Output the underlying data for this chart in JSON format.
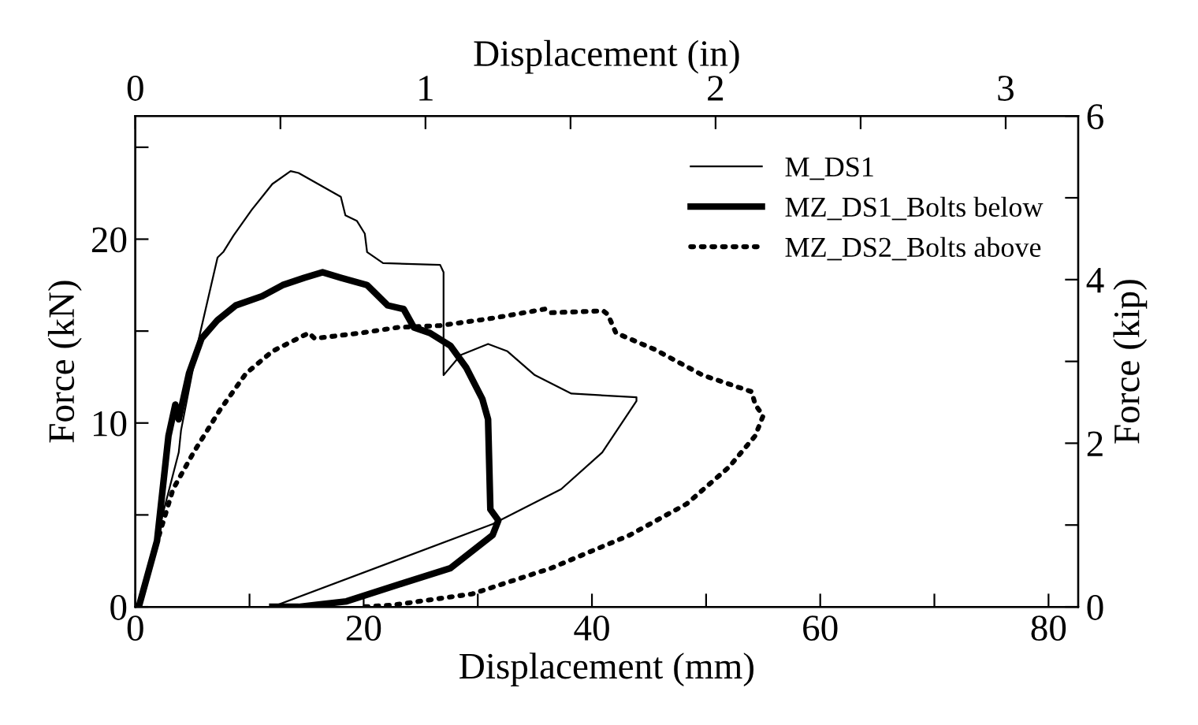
{
  "chart_data": {
    "type": "line",
    "xlabel": "Displacement (mm)",
    "ylabel": "Force (kN)",
    "x2label": "Displacement (in)",
    "y2label": "Force (kip)",
    "xlim": [
      0,
      82.6
    ],
    "ylim": [
      0,
      26.7
    ],
    "x2lim": [
      0,
      3.25
    ],
    "y2lim": [
      0,
      6
    ],
    "xticks": [
      0,
      {
        "value": 10,
        "label": null
      },
      20,
      {
        "value": 30,
        "label": null
      },
      40,
      {
        "value": 50,
        "label": null
      },
      60,
      {
        "value": 70,
        "label": null
      },
      80
    ],
    "yticks": [
      0,
      {
        "value": 5,
        "label": null
      },
      10,
      {
        "value": 15,
        "label": null
      },
      20,
      {
        "value": 25,
        "label": null
      }
    ],
    "x2ticks": [
      0,
      {
        "value": 0.5,
        "label": null
      },
      1,
      {
        "value": 1.5,
        "label": null
      },
      2,
      {
        "value": 2.5,
        "label": null
      },
      3
    ],
    "y2ticks": [
      0,
      {
        "value": 1,
        "label": null
      },
      2,
      {
        "value": 3,
        "label": null
      },
      4,
      {
        "value": 5,
        "label": null
      },
      6
    ],
    "grid": false,
    "legend": "top right",
    "marker": "none",
    "series": [
      {
        "name": "M_DS1",
        "color": "#000000",
        "line_style": "solid",
        "x": [
          0.3,
          3.8,
          4.0,
          5.6,
          7.2,
          7.7,
          8.6,
          10.2,
          12.0,
          13.6,
          14.3,
          18.0,
          18.4,
          19.4,
          20.1,
          20.3,
          21.7,
          26.7,
          27.0,
          27.0,
          28.5,
          30.9,
          32.6,
          35.0,
          38.2,
          43.9,
          43.9,
          40.9,
          37.3,
          31.3,
          12.0,
          4.5
        ],
        "values": [
          0,
          8.4,
          9.6,
          14.7,
          19.0,
          19.3,
          20.2,
          21.6,
          23.0,
          23.7,
          23.6,
          22.3,
          21.3,
          21.0,
          20.3,
          19.3,
          18.7,
          18.6,
          18.2,
          12.6,
          13.7,
          14.3,
          13.9,
          12.6,
          11.6,
          11.4,
          11.2,
          8.4,
          6.4,
          4.5,
          0,
          0
        ]
      },
      {
        "name": "MZ_DS1_Bolts below",
        "color": "#000000",
        "line_style": "solid",
        "x": [
          0.3,
          1.9,
          2.9,
          3.5,
          3.8,
          4.7,
          5.8,
          7.2,
          8.8,
          11.1,
          12.9,
          14.8,
          16.4,
          18.0,
          20.3,
          22.1,
          23.5,
          24.4,
          25.8,
          27.6,
          29.0,
          30.4,
          30.9,
          31.1,
          31.8,
          31.3,
          27.6,
          23.5,
          18.5,
          14.3,
          12.0
        ],
        "values": [
          0,
          3.6,
          9.3,
          11.0,
          10.2,
          12.7,
          14.6,
          15.6,
          16.4,
          16.9,
          17.5,
          17.9,
          18.2,
          17.9,
          17.5,
          16.4,
          16.2,
          15.2,
          14.9,
          14.2,
          13.0,
          11.3,
          10.2,
          5.3,
          4.7,
          3.9,
          2.1,
          1.3,
          0.3,
          0,
          0
        ]
      },
      {
        "name": "MZ_DS2_Bolts above",
        "color": "#000000",
        "line_style": "dotted",
        "x": [
          0.3,
          1.5,
          3.3,
          5.1,
          7.4,
          9.7,
          12.0,
          15.2,
          15.7,
          19.8,
          23.0,
          26.7,
          31.3,
          35.9,
          36.4,
          41.0,
          41.4,
          42.1,
          45.5,
          49.7,
          54.0,
          54.3,
          55.0,
          54.3,
          52.0,
          48.3,
          43.3,
          36.4,
          29.5,
          22.6,
          20.0
        ],
        "values": [
          0,
          2.7,
          6.4,
          8.4,
          10.7,
          12.7,
          13.9,
          14.9,
          14.6,
          14.9,
          15.2,
          15.3,
          15.7,
          16.2,
          16.0,
          16.1,
          15.9,
          14.9,
          14.0,
          12.6,
          11.7,
          11.0,
          10.4,
          9.3,
          7.6,
          5.6,
          3.9,
          2.1,
          0.7,
          0.1,
          0
        ]
      }
    ]
  }
}
